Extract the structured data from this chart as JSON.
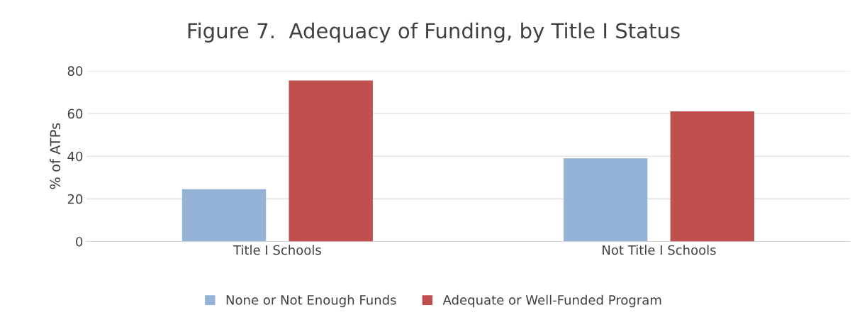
{
  "chart_data": {
    "type": "bar",
    "title": "Figure 7.  Adequacy of Funding, by Title I Status",
    "ylabel": "% of ATPs",
    "categories": [
      "Title I Schools",
      "Not Title I Schools"
    ],
    "series": [
      {
        "name": "None or Not Enough Funds",
        "color": "#95b3d7",
        "values": [
          24.5,
          39
        ]
      },
      {
        "name": "Adequate or Well-Funded Program",
        "color": "#c0504d",
        "values": [
          75.5,
          61
        ]
      }
    ],
    "ylim": [
      0,
      80
    ],
    "yticks": [
      0,
      20,
      40,
      60,
      80
    ],
    "grid": "y",
    "legend": "bottom"
  }
}
